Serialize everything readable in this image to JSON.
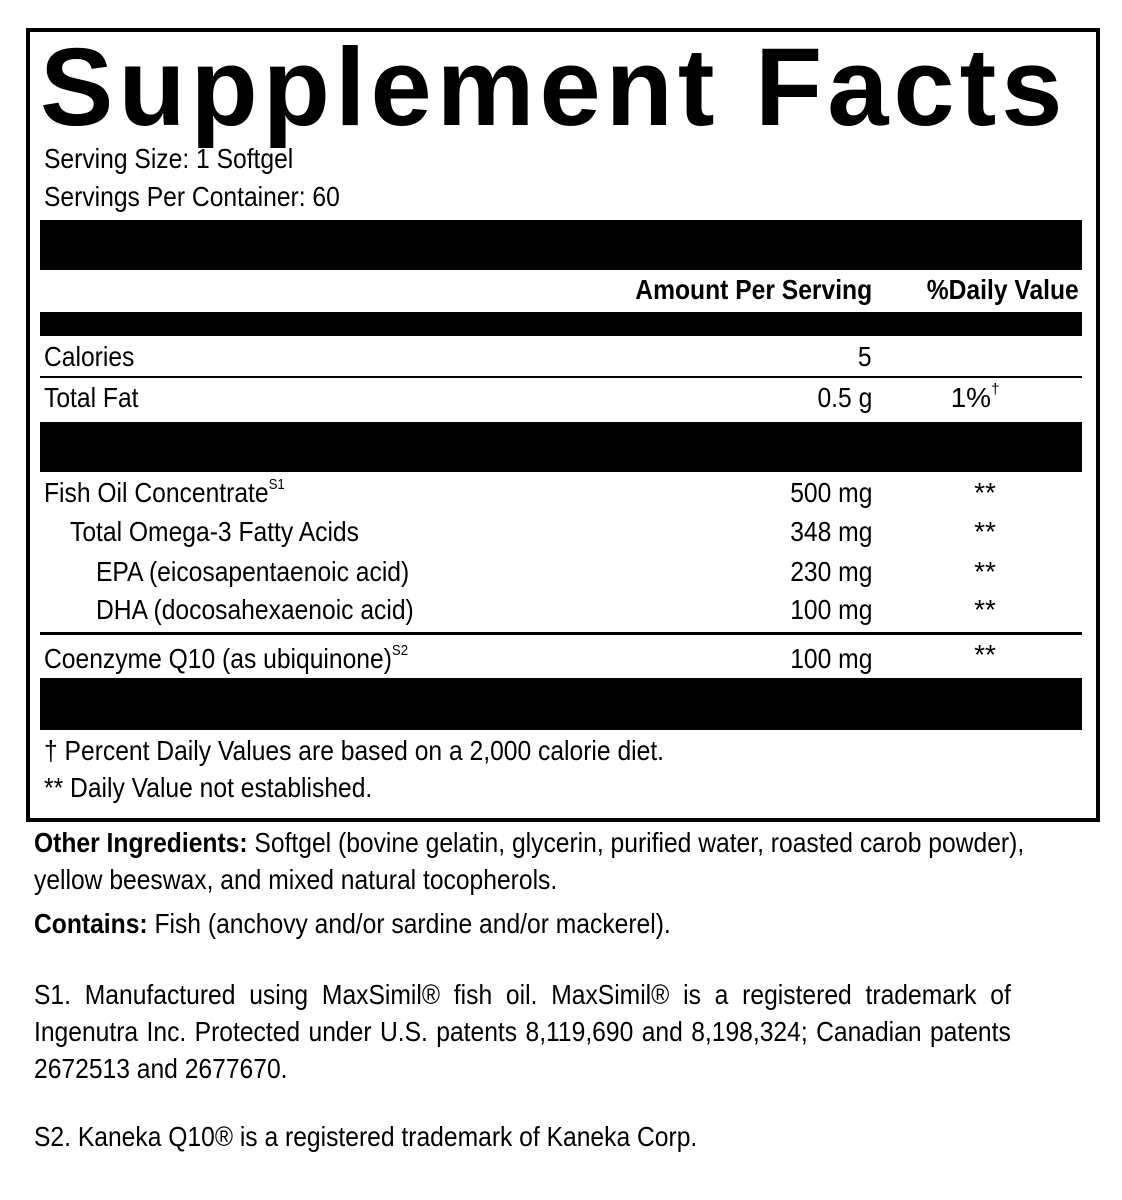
{
  "title": "Supplement Facts",
  "serving_size": "Serving Size: 1 Softgel",
  "servings_per_container": "Servings Per Container: 60",
  "header": {
    "amount": "Amount Per Serving",
    "dv": "%Daily Value"
  },
  "rows": [
    {
      "name": "Calories",
      "amount": "5",
      "dv": ""
    },
    {
      "name": "Total Fat",
      "amount": "0.5 g",
      "dv": "1%",
      "dv_mark": "†"
    },
    {
      "name": "Fish Oil Concentrate",
      "sup": "S1",
      "amount": "500 mg",
      "dv": "**"
    },
    {
      "name": "Total Omega-3 Fatty Acids",
      "amount": "348 mg",
      "dv": "**"
    },
    {
      "name": "EPA (eicosapentaenoic acid)",
      "amount": "230 mg",
      "dv": "**"
    },
    {
      "name": "DHA (docosahexaenoic acid)",
      "amount": "100 mg",
      "dv": "**"
    },
    {
      "name": "Coenzyme Q10 (as ubiquinone)",
      "sup": "S2",
      "amount": "100 mg",
      "dv": "**"
    }
  ],
  "footnotes": [
    "† Percent Daily Values are based on a 2,000 calorie diet.",
    "** Daily Value not established."
  ],
  "other_ingredients": {
    "label": "Other Ingredients:",
    "text": "Softgel (bovine gelatin, glycerin, purified water, roasted carob powder), yellow beeswax, and mixed natural tocopherols."
  },
  "contains": {
    "label": "Contains:",
    "text": "Fish (anchovy and/or sardine and/or mackerel)."
  },
  "s1": "S1. Manufactured using MaxSimil® fish oil. MaxSimil® is a registered trademark of Ingenutra Inc. Protected under U.S. patents 8,119,690 and 8,198,324; Canadian patents 2672513 and 2677670.",
  "s2": "S2. Kaneka Q10® is a registered trademark of Kaneka Corp."
}
